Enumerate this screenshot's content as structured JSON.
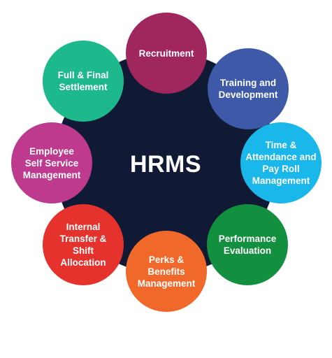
{
  "hub": {
    "title": "HRMS",
    "color": "#111a35"
  },
  "nodes": [
    {
      "label": "Recruitment",
      "color": "#a0265e"
    },
    {
      "label": "Training and\nDevelopment",
      "color": "#3d59a8"
    },
    {
      "label": "Time &\nAttendance and\nPay Roll\nManagement",
      "color": "#1ab7ea"
    },
    {
      "label": "Performance\nEvaluation",
      "color": "#13903f"
    },
    {
      "label": "Perks &\nBenefits\nManagement",
      "color": "#f0682a"
    },
    {
      "label": "Internal\nTransfer &\nShift\nAllocation",
      "color": "#e5322d"
    },
    {
      "label": "Employee\nSelf Service\nManagement",
      "color": "#bd3a8e"
    },
    {
      "label": "Full & Final\nSettlement",
      "color": "#1db98d"
    }
  ]
}
